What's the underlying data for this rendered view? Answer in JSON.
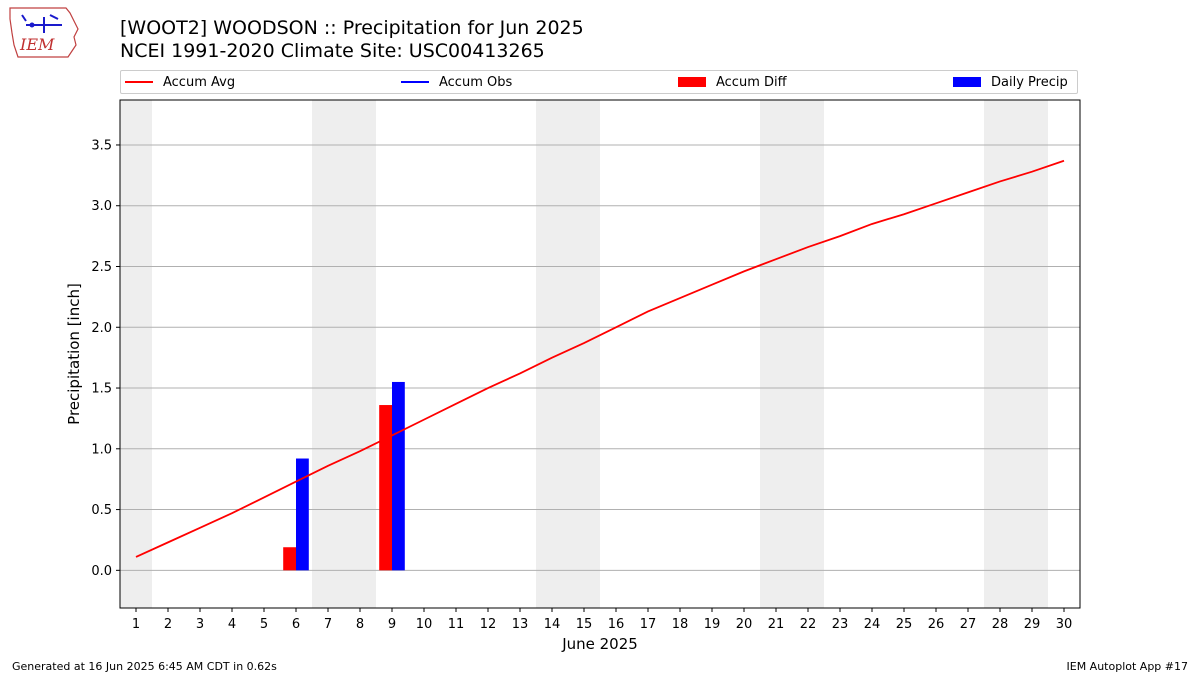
{
  "header": {
    "title_line1": "[WOOT2] WOODSON :: Precipitation for Jun 2025",
    "title_line2": "NCEI 1991-2020 Climate Site: USC00413265"
  },
  "logo": {
    "text": "IEM",
    "icon": "iem-iowa-logo"
  },
  "footer": {
    "left": "Generated at 16 Jun 2025 6:45 AM CDT in 0.62s",
    "right": "IEM Autoplot App #17"
  },
  "chart_data": {
    "type": "bar",
    "xlabel": "June 2025",
    "ylabel": "Precipitation [inch]",
    "ylim": [
      -0.31,
      3.87
    ],
    "xlim": [
      0.5,
      30.5
    ],
    "grid": "horizontal",
    "legend_position": "top",
    "yticks": [
      "0.0",
      "0.5",
      "1.0",
      "1.5",
      "2.0",
      "2.5",
      "3.0",
      "3.5"
    ],
    "ytick_values": [
      0.0,
      0.5,
      1.0,
      1.5,
      2.0,
      2.5,
      3.0,
      3.5
    ],
    "x": [
      1,
      2,
      3,
      4,
      5,
      6,
      7,
      8,
      9,
      10,
      11,
      12,
      13,
      14,
      15,
      16,
      17,
      18,
      19,
      20,
      21,
      22,
      23,
      24,
      25,
      26,
      27,
      28,
      29,
      30
    ],
    "weekend_days": [
      1,
      7,
      8,
      14,
      15,
      21,
      22,
      28,
      29
    ],
    "legend": [
      {
        "name": "Accum Avg",
        "kind": "line",
        "color": "#ff0000"
      },
      {
        "name": "Accum Obs",
        "kind": "line",
        "color": "#0000ff"
      },
      {
        "name": "Accum Diff",
        "kind": "bar",
        "color": "#ff0000"
      },
      {
        "name": "Daily Precip",
        "kind": "bar",
        "color": "#0000ff"
      }
    ],
    "series": [
      {
        "name": "Accum Avg",
        "kind": "line",
        "color": "#ff0000",
        "values": [
          0.11,
          0.23,
          0.35,
          0.47,
          0.6,
          0.73,
          0.86,
          0.98,
          1.11,
          1.24,
          1.37,
          1.5,
          1.62,
          1.75,
          1.87,
          2.0,
          2.13,
          2.24,
          2.35,
          2.46,
          2.56,
          2.66,
          2.75,
          2.85,
          2.93,
          3.02,
          3.11,
          3.2,
          3.28,
          3.37
        ]
      },
      {
        "name": "Accum Diff",
        "kind": "bar",
        "color": "#ff0000",
        "points": [
          {
            "x": 6,
            "y": 0.19
          },
          {
            "x": 9,
            "y": 1.36
          }
        ]
      },
      {
        "name": "Daily Precip",
        "kind": "bar",
        "color": "#0000ff",
        "points": [
          {
            "x": 6,
            "y": 0.92
          },
          {
            "x": 9,
            "y": 1.55
          }
        ]
      }
    ]
  }
}
